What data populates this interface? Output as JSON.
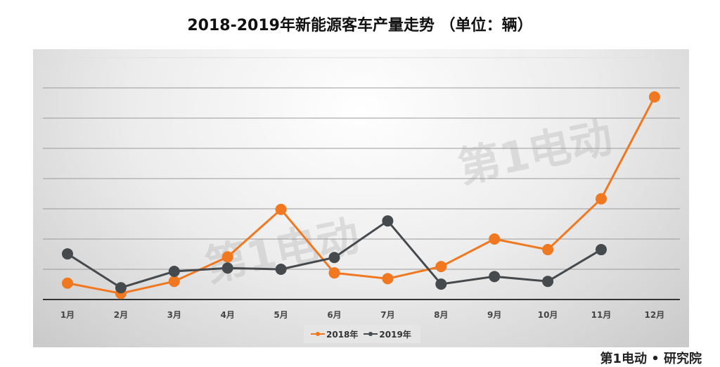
{
  "chart_data": {
    "type": "line",
    "title": "2018-2019年新能源客车产量走势 （单位：辆）",
    "categories": [
      "1月",
      "2月",
      "3月",
      "4月",
      "5月",
      "6月",
      "7月",
      "8月",
      "9月",
      "10月",
      "11月",
      "12月"
    ],
    "series": [
      {
        "name": "2018年",
        "color": "#f07820",
        "values": [
          0.54,
          0.2,
          0.6,
          1.41,
          2.98,
          0.88,
          0.69,
          1.09,
          2.0,
          1.65,
          3.33,
          6.7
        ]
      },
      {
        "name": "2019年",
        "color": "#454a4e",
        "values": [
          1.51,
          0.39,
          0.93,
          1.04,
          1.0,
          1.39,
          2.6,
          0.51,
          0.76,
          0.6,
          1.65,
          null
        ]
      }
    ],
    "ylim": [
      0,
      8
    ],
    "y_tick_labels_shown": false,
    "grid": true,
    "legend": "bottom",
    "watermark": "第1电动 WWW.D1EV.com"
  },
  "brand": "第1电动 • 研究院"
}
